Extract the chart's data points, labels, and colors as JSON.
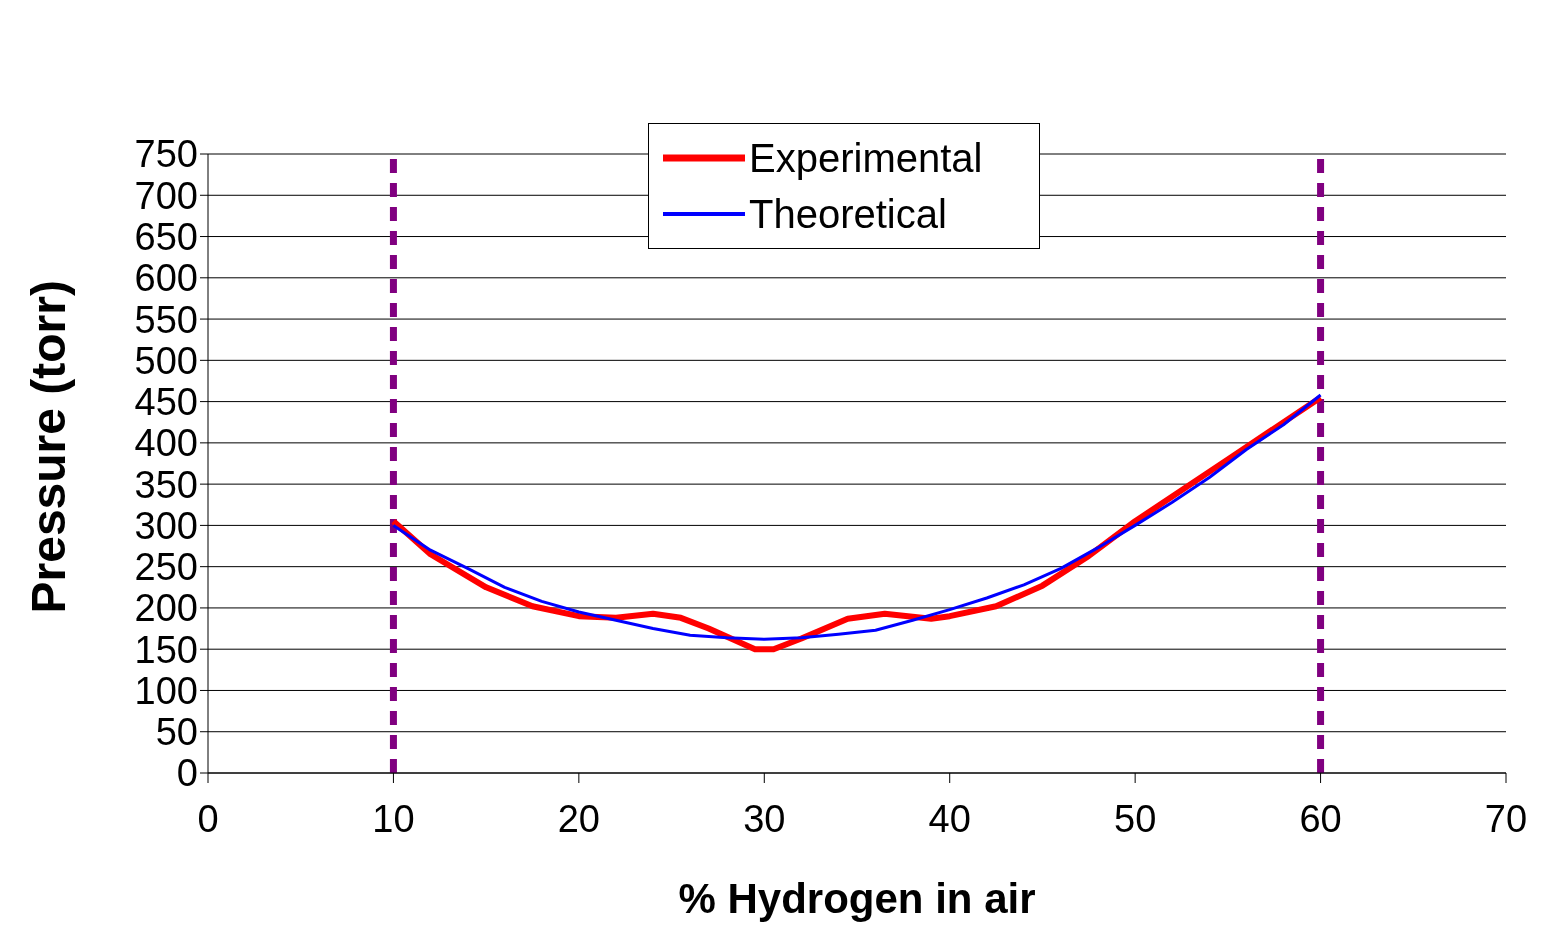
{
  "chart_data": {
    "type": "line",
    "xlabel": "% Hydrogen in air",
    "ylabel": "Pressure (torr)",
    "xlim": [
      0,
      70
    ],
    "xticks": [
      0,
      10,
      20,
      30,
      40,
      50,
      60,
      70
    ],
    "ylim": [
      0,
      750
    ],
    "yticks": [
      0,
      50,
      100,
      150,
      200,
      250,
      300,
      350,
      400,
      450,
      500,
      550,
      600,
      650,
      700,
      750
    ],
    "grid": "y",
    "legend": "top",
    "marker": "none",
    "line_style": "solid",
    "ref_lines": [
      {
        "axis": "x",
        "value": 10,
        "color": "#800080",
        "line_style": "dashed"
      },
      {
        "axis": "x",
        "value": 60,
        "color": "#800080",
        "line_style": "dashed"
      }
    ],
    "series": [
      {
        "name": "Experimental",
        "color": "#ff0000",
        "x": [
          10,
          12,
          15,
          17.5,
          20,
          22,
          24,
          25.5,
          27,
          29.5,
          30.5,
          32,
          34.5,
          36.5,
          39,
          40,
          42.5,
          45,
          47.5,
          50,
          55,
          60
        ],
        "values": [
          305,
          265,
          225,
          202,
          190,
          188,
          193,
          188,
          175,
          150,
          150,
          163,
          187,
          193,
          187,
          190,
          202,
          227,
          263,
          305,
          380,
          455
        ]
      },
      {
        "name": "Theoretical",
        "color": "#0000ff",
        "x": [
          10,
          12,
          14,
          16,
          18,
          20,
          22,
          24,
          26,
          28,
          30,
          32,
          34,
          36,
          38,
          40,
          42,
          44,
          46,
          48,
          50,
          52,
          54,
          56,
          58,
          60
        ],
        "values": [
          300,
          270,
          248,
          225,
          208,
          195,
          185,
          175,
          167,
          164,
          162,
          164,
          168,
          173,
          185,
          198,
          212,
          228,
          248,
          273,
          300,
          328,
          358,
          392,
          422,
          458
        ]
      }
    ]
  }
}
